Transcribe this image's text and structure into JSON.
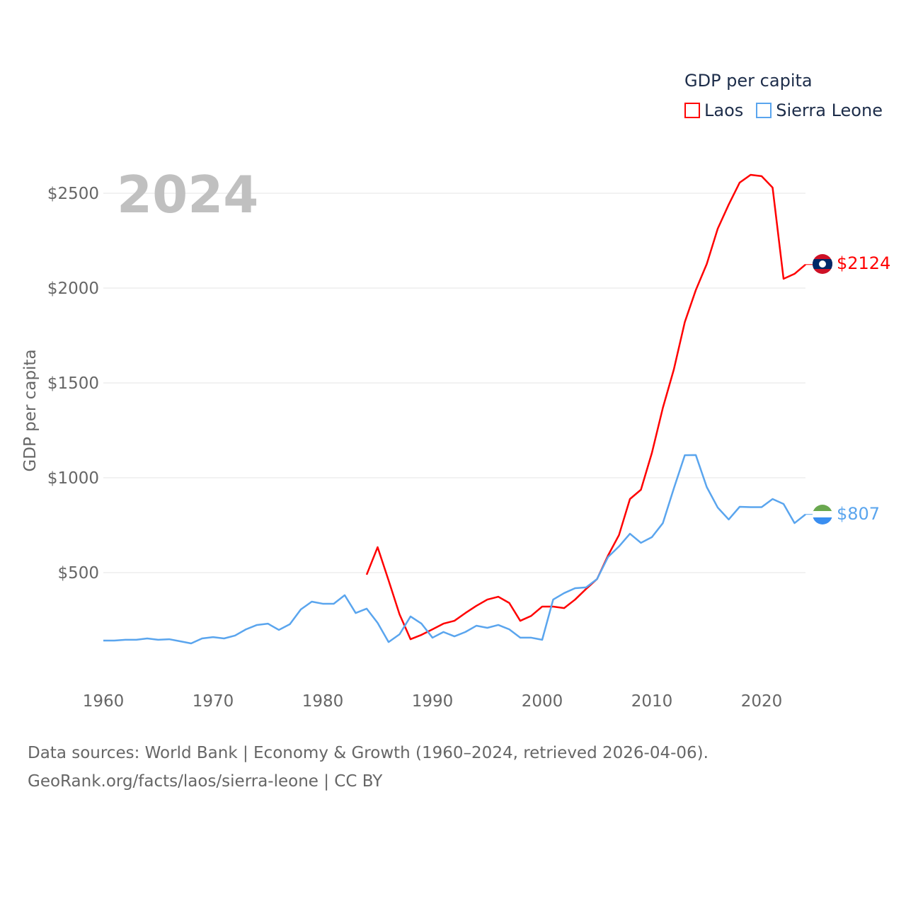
{
  "legend": {
    "title": "GDP per capita",
    "items": [
      {
        "label": "Laos",
        "color": "#ff0000"
      },
      {
        "label": "Sierra Leone",
        "color": "#5aa5ee"
      }
    ]
  },
  "year_label": "2024",
  "footer": {
    "line1": "Data sources: World Bank | Economy & Growth (1960–2024, retrieved 2026-04-06).",
    "line2": "GeoRank.org/facts/laos/sierra-leone | CC BY"
  },
  "end_labels": {
    "laos": "$2124",
    "sierra_leone": "$807"
  },
  "chart_data": {
    "type": "line",
    "title": "GDP per capita",
    "xlabel": "",
    "ylabel": "GDP per capita",
    "xlim": [
      1960,
      2024
    ],
    "ylim": [
      0,
      2700
    ],
    "x_ticks": [
      1960,
      1970,
      1980,
      1990,
      2000,
      2010,
      2020
    ],
    "x_tick_labels": [
      "1960",
      "1970",
      "1980",
      "1990",
      "2000",
      "2010",
      "2020"
    ],
    "y_ticks": [
      500,
      1000,
      1500,
      2000,
      2500
    ],
    "y_tick_labels": [
      "$500",
      "$1000",
      "$1500",
      "$2000",
      "$2500"
    ],
    "grid": true,
    "legend_position": "top-right",
    "series": [
      {
        "name": "Laos",
        "color": "#ff0000",
        "start_year": 1984,
        "values": [
          489,
          634,
          459,
          280,
          149,
          172,
          201,
          231,
          246,
          287,
          325,
          358,
          373,
          340,
          246,
          272,
          321,
          321,
          313,
          358,
          414,
          466,
          590,
          698,
          888,
          937,
          1131,
          1369,
          1571,
          1821,
          1989,
          2127,
          2313,
          2440,
          2556,
          2597,
          2590,
          2530,
          2049,
          2075,
          2124
        ]
      },
      {
        "name": "Sierra Leone",
        "color": "#5aa5ee",
        "start_year": 1960,
        "values": [
          142,
          142,
          146,
          146,
          153,
          146,
          149,
          138,
          127,
          153,
          160,
          153,
          168,
          201,
          224,
          231,
          198,
          228,
          306,
          347,
          336,
          336,
          381,
          287,
          310,
          235,
          134,
          175,
          269,
          231,
          157,
          187,
          164,
          187,
          220,
          209,
          224,
          201,
          157,
          157,
          146,
          358,
          392,
          418,
          422,
          466,
          582,
          638,
          705,
          657,
          687,
          761,
          944,
          1119,
          1120,
          951,
          843,
          780,
          847,
          845,
          845,
          888,
          862,
          761,
          807
        ]
      }
    ]
  }
}
